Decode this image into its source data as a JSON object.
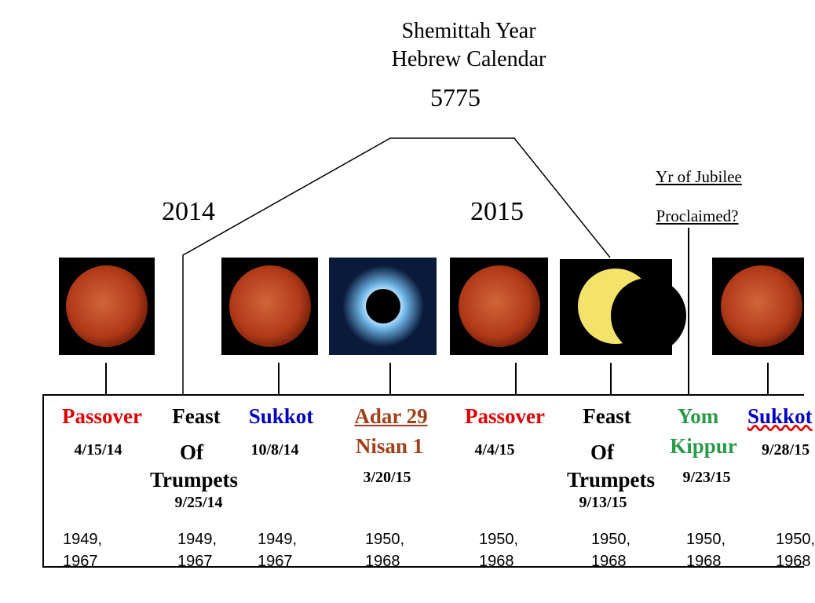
{
  "header": {
    "lines": [
      "Shemittah Year",
      "Hebrew Calendar",
      "5775"
    ]
  },
  "years": [
    "2014",
    "2015"
  ],
  "jubilee": [
    "Yr of Jubilee",
    "Proclaimed?"
  ],
  "events": [
    {
      "name": [
        "Passover"
      ],
      "date": "4/15/14",
      "years": [
        "1949,",
        "1967"
      ]
    },
    {
      "name": [
        "Feast",
        "Of",
        "Trumpets"
      ],
      "date": "9/25/14",
      "years": [
        "1949,",
        "1967"
      ]
    },
    {
      "name": [
        "Sukkot"
      ],
      "date": "10/8/14",
      "years": [
        "1949,",
        "1967"
      ]
    },
    {
      "name": [
        "Adar 29",
        "Nisan 1"
      ],
      "date": "3/20/15",
      "years": [
        "1950,",
        "1968"
      ]
    },
    {
      "name": [
        "Passover"
      ],
      "date": "4/4/15",
      "years": [
        "1950,",
        "1968"
      ]
    },
    {
      "name": [
        "Feast",
        "Of",
        "Trumpets"
      ],
      "date": "9/13/15",
      "years": [
        "1950,",
        "1968"
      ]
    },
    {
      "name": [
        "Yom",
        "Kippur"
      ],
      "date": "9/23/15",
      "years": [
        "1950,",
        "1968"
      ]
    },
    {
      "name": [
        "Sukkot"
      ],
      "date": "9/28/15",
      "years": [
        "1950,",
        "1968"
      ]
    }
  ]
}
